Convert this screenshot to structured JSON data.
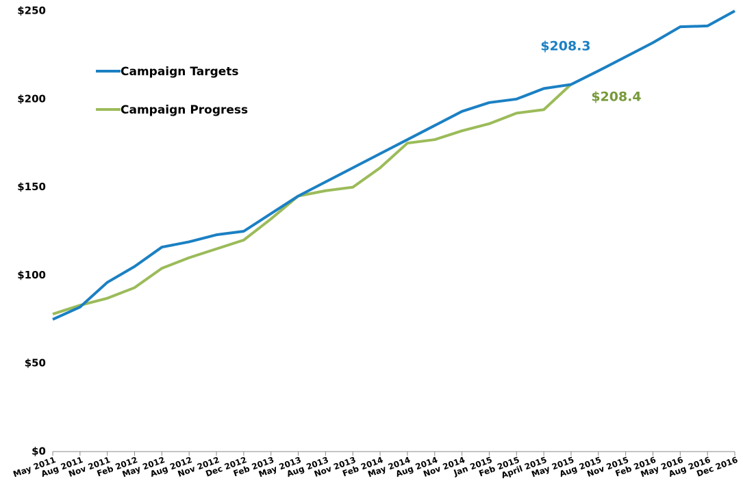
{
  "chart_data": {
    "type": "line",
    "categories": [
      "May 2011",
      "Aug 2011",
      "Nov 2011",
      "Feb 2012",
      "May 2012",
      "Aug 2012",
      "Nov 2012",
      "Dec 2012",
      "Feb 2013",
      "May 2013",
      "Aug 2013",
      "Nov 2013",
      "Feb 2014",
      "May 2014",
      "Aug 2014",
      "Nov 2014",
      "Jan 2015",
      "Feb 2015",
      "April 2015",
      "May 2015",
      "Aug 2015",
      "Nov 2015",
      "Feb 2016",
      "May 2016",
      "Aug 2016",
      "Dec 2016"
    ],
    "series": [
      {
        "name": "Campaign Targets",
        "color": "#1b80c3",
        "values": [
          75,
          82,
          96,
          105,
          116,
          119,
          123,
          125,
          135,
          145,
          153,
          161,
          169,
          177,
          185,
          193,
          198,
          200,
          206,
          208.3,
          216,
          224,
          232,
          241,
          241.5,
          250
        ]
      },
      {
        "name": "Campaign Progress",
        "color": "#9bbb59",
        "values": [
          78,
          83,
          87,
          93,
          104,
          110,
          115,
          120,
          132,
          145,
          148,
          150,
          161,
          175,
          177,
          182,
          186,
          192,
          194,
          208.4,
          null,
          null,
          null,
          null,
          null,
          null
        ]
      }
    ],
    "annotations": [
      {
        "text": "$208.3",
        "color": "#1b80c3"
      },
      {
        "text": "$208.4",
        "color": "#779a3a"
      }
    ],
    "ylim": [
      0,
      250
    ],
    "yticks": [
      {
        "value": 0,
        "label": "$0"
      },
      {
        "value": 50,
        "label": "$50"
      },
      {
        "value": 100,
        "label": "$100"
      },
      {
        "value": 150,
        "label": "$150"
      },
      {
        "value": 200,
        "label": "$200"
      },
      {
        "value": 250,
        "label": "$250"
      }
    ],
    "grid": false,
    "legend": "upper left"
  }
}
